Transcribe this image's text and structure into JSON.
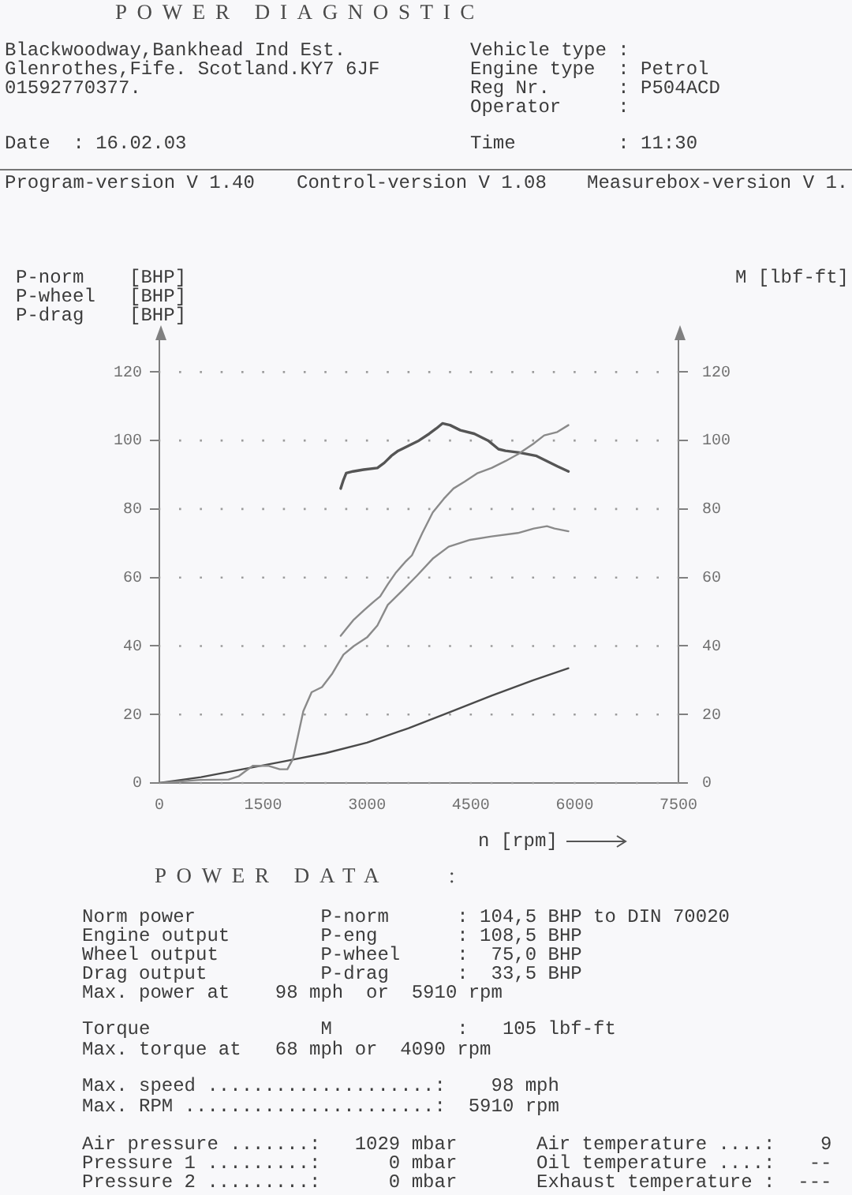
{
  "chart_data": {
    "type": "line",
    "title": "POWER DIAGNOSTIC",
    "xlabel": "n [rpm]",
    "ylabel": "P-norm    [BHP]\nP-wheel   [BHP]\nP-drag    [BHP]",
    "y2label": "M [lbf-ft]",
    "xlim": [
      0,
      7500
    ],
    "xticks": [
      0,
      1500,
      3000,
      4500,
      6000,
      7500
    ],
    "ylim": [
      0,
      130
    ],
    "yticks": [
      0,
      20,
      40,
      60,
      80,
      100,
      120
    ],
    "y2lim": [
      0,
      130
    ],
    "y2ticks": [
      0,
      20,
      40,
      60,
      80,
      100,
      120
    ],
    "grid": "y",
    "legend": false,
    "marker": "none",
    "series": [
      {
        "color": "#8a8a8a",
        "x": [
          2620,
          2700,
          2800,
          2960,
          3100,
          3190,
          3300,
          3420,
          3550,
          3650,
          3800,
          3950,
          4110,
          4250,
          4410,
          4600,
          4800,
          5000,
          5180,
          5400,
          5560,
          5750,
          5910
        ],
        "values": [
          43,
          45,
          47.5,
          50.5,
          53,
          54.5,
          58,
          61.5,
          64.5,
          66.5,
          73,
          79,
          83,
          86,
          88,
          90.5,
          92,
          94,
          96,
          99,
          101.5,
          102.5,
          104.5
        ]
      },
      {
        "color": "#8a8a8a",
        "x": [
          0,
          590,
          1000,
          1150,
          1240,
          1350,
          1580,
          1740,
          1850,
          1930,
          2000,
          2080,
          2200,
          2350,
          2500,
          2660,
          2810,
          3000,
          3150,
          3300,
          3500,
          3720,
          3950,
          4180,
          4490,
          4800,
          5180,
          5410,
          5600,
          5710,
          5910
        ],
        "values": [
          0,
          0.9,
          1,
          2,
          3.4,
          5,
          5,
          4,
          4,
          7,
          13.5,
          21,
          26.5,
          28,
          32,
          37.5,
          40,
          42.5,
          46,
          52,
          56,
          60.5,
          65.5,
          69,
          71,
          72,
          73,
          74.3,
          75,
          74.3,
          73.5
        ]
      },
      {
        "color": "#4a4a4a",
        "x": [
          0,
          600,
          1200,
          1800,
          2400,
          3000,
          3600,
          4200,
          4800,
          5400,
          5910
        ],
        "values": [
          0,
          1.7,
          4,
          6.3,
          8.7,
          11.8,
          16,
          20.7,
          25.5,
          30,
          33.5
        ]
      },
      {
        "color": "#555555",
        "axis": "y2",
        "x": [
          2620,
          2660,
          2700,
          2800,
          2950,
          3150,
          3250,
          3350,
          3450,
          3600,
          3750,
          3900,
          4000,
          4090,
          4200,
          4350,
          4550,
          4750,
          4900,
          5000,
          5200,
          5450,
          5600,
          5750,
          5910
        ],
        "values": [
          86,
          88.5,
          90.5,
          91,
          91.5,
          92,
          93.5,
          95.5,
          97,
          98.5,
          100,
          102,
          103.5,
          105,
          104.5,
          103,
          102,
          100,
          97.5,
          97,
          96.5,
          95.5,
          94,
          92.5,
          91
        ]
      }
    ],
    "annotations": [
      "Blackwoodway,Bankhead Ind Est.",
      "Glenrothes,Fife. Scotland.KY7 6JF",
      "01592770377.",
      "Vehicle type :",
      "Engine type  : Petrol",
      "Reg Nr.      : P504ACD",
      "Operator     :",
      "Date  : 16.02.03",
      "Time         : 11:30",
      "Program-version V 1.40",
      "Control-version V 1.08",
      "Measurebox-version V 1.",
      "POWER DATA    :",
      "Norm power           P-norm      : 104,5 BHP to DIN 70020",
      "Engine output        P-eng       : 108,5 BHP",
      "Wheel output         P-wheel     :  75,0 BHP",
      "Drag output          P-drag      :  33,5 BHP",
      "Max. power at    98 mph  or  5910 rpm",
      "Torque               M           :   105 lbf-ft",
      "Max. torque at   68 mph or  4090 rpm",
      "Max. speed ....................:    98 mph",
      "Max. RPM ......................:  5910 rpm",
      "Air pressure .......:   1029 mbar",
      "Pressure 1 .........:      0 mbar",
      "Pressure 2 .........:      0 mbar",
      "Air temperature ....:    9",
      "Oil temperature ....:   --",
      "Exhaust temperature :  ---"
    ]
  }
}
